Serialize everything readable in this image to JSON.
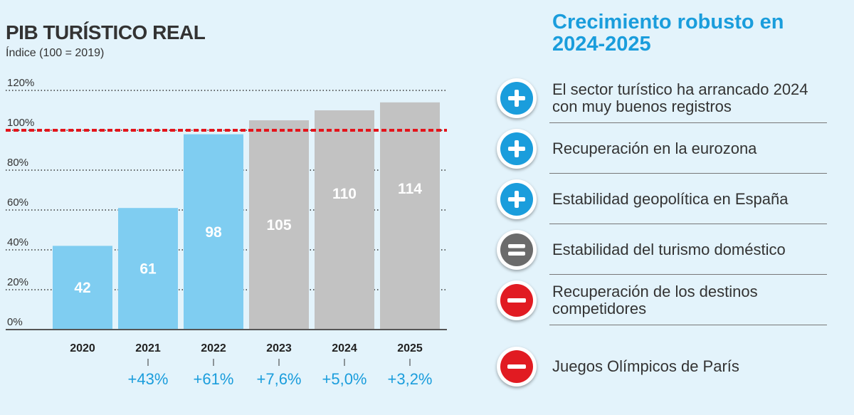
{
  "colors": {
    "actual": "#7fcdf1",
    "forecast": "#c2c2c2",
    "reference_line": "#e4141b",
    "accent": "#1a9ddc",
    "positive": "#1a9ddc",
    "neutral": "#6b6b6b",
    "negative": "#e11b22",
    "text": "#333333"
  },
  "chart_data": {
    "type": "bar",
    "title": "PIB TURÍSTICO REAL",
    "subtitle": "Índice (100 = 2019)",
    "categories": [
      "2020",
      "2021",
      "2022",
      "2023",
      "2024",
      "2025"
    ],
    "values": [
      42,
      61,
      98,
      105,
      110,
      114
    ],
    "value_labels": [
      "42",
      "61",
      "98",
      "105",
      "110",
      "114"
    ],
    "growth_labels": [
      "",
      "+43%",
      "+61%",
      "+7,6%",
      "+5,0%",
      "+3,2%"
    ],
    "forecast_from_index": 3,
    "yticks": [
      0,
      20,
      40,
      60,
      80,
      100,
      120
    ],
    "ytick_labels": [
      "0%",
      "20%",
      "40%",
      "60%",
      "80%",
      "100%",
      "120%"
    ],
    "ylim": [
      0,
      120
    ],
    "reference_value": 100,
    "grid": true
  },
  "panel": {
    "title": "Crecimiento robusto en 2024-2025",
    "factors": [
      {
        "label": "El sector turístico ha arrancado 2024 con muy buenos registros",
        "sign": "plus",
        "icon": "plus-icon"
      },
      {
        "label": "Recuperación en la eurozona",
        "sign": "plus",
        "icon": "plus-icon"
      },
      {
        "label": "Estabilidad geopolítica en España",
        "sign": "plus",
        "icon": "plus-icon"
      },
      {
        "label": "Estabilidad del turismo doméstico",
        "sign": "equal",
        "icon": "equal-icon"
      },
      {
        "label": "Recuperación de los destinos competidores",
        "sign": "minus",
        "icon": "minus-icon"
      },
      {
        "label": "Juegos Olímpicos de París",
        "sign": "minus",
        "icon": "minus-icon"
      }
    ]
  }
}
